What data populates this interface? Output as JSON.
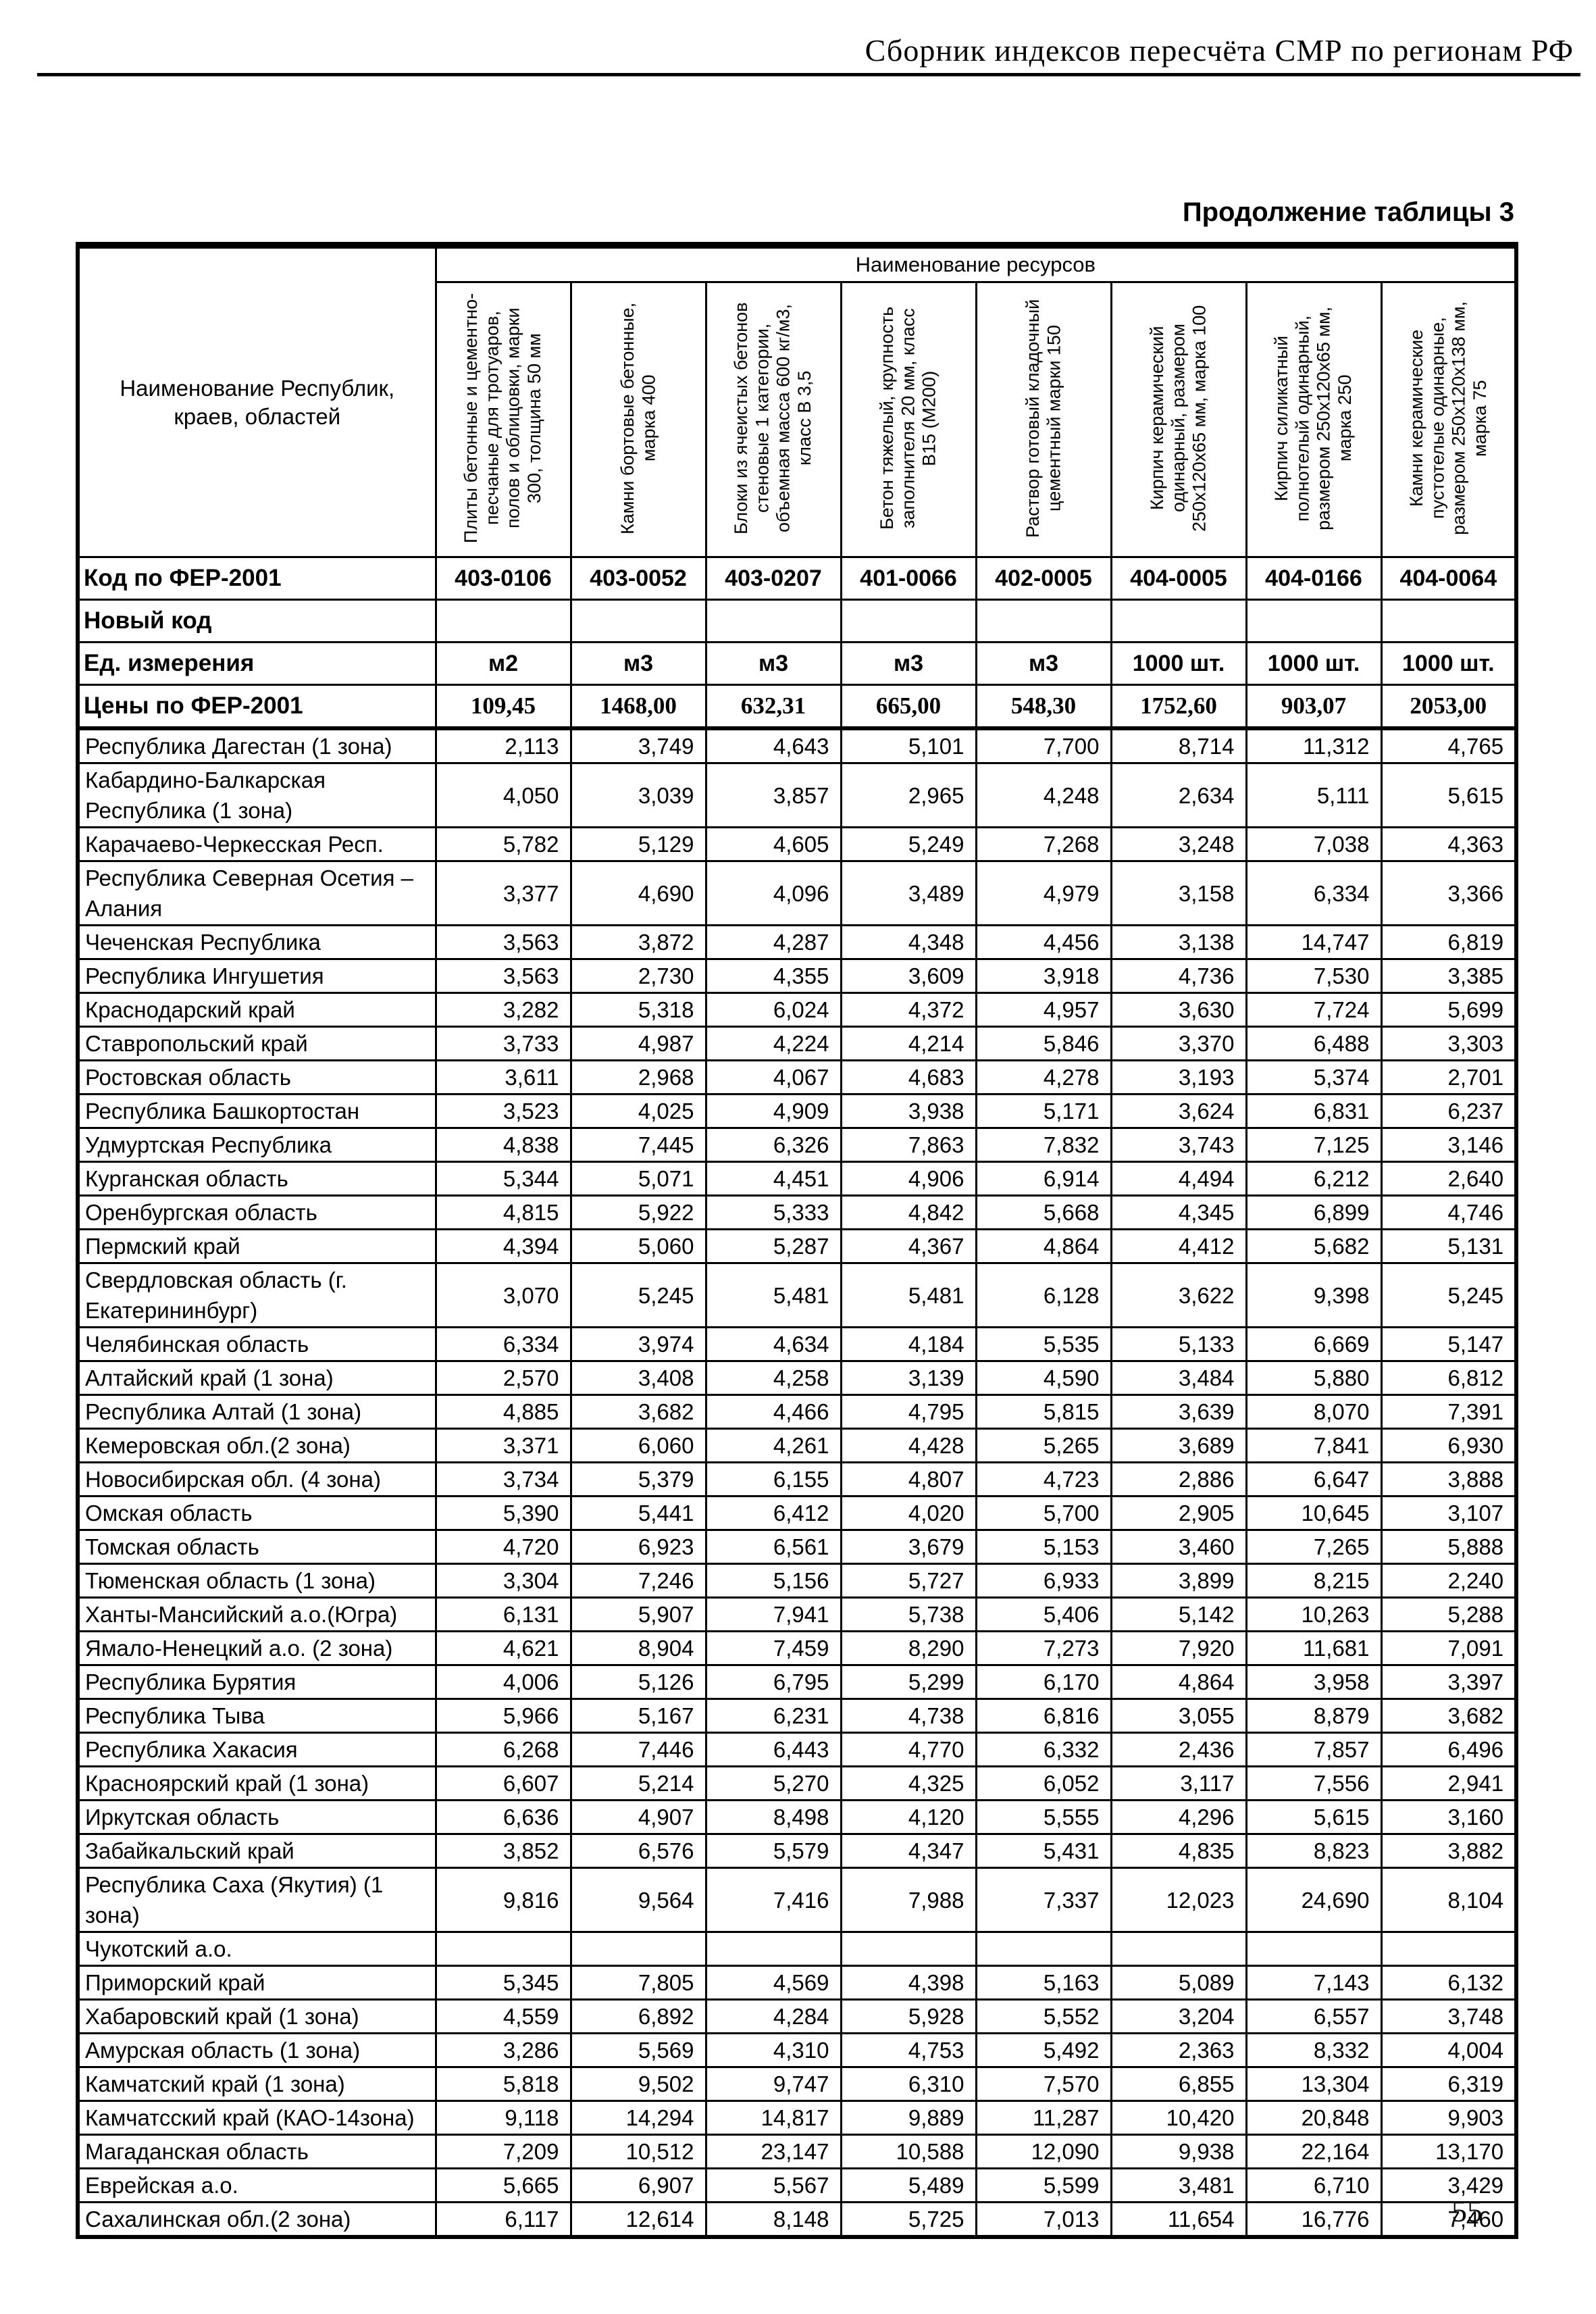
{
  "page": {
    "header_title": "Сборник индексов пересчёта СМР  по регионам РФ",
    "table_caption": "Продолжение таблицы 3",
    "page_number": "55"
  },
  "table": {
    "region_col_header": "Наименование Республик, краев, областей",
    "resources_header": "Наименование ресурсов",
    "columns": [
      "Плиты бетонные и цементно-песчаные для тротуаров, полов и облицовки, марки 300, толщина 50 мм",
      "Камни бортовые бетонные, марка 400",
      "Блоки из ячеистых бетонов стеновые 1 категории, объемная масса 600 кг/м3, класс В 3,5",
      "Бетон тяжелый, крупность заполнителя 20 мм, класс В15 (М200)",
      "Раствор готовый кладочный цементный марки 150",
      "Кирпич керамический одинарный, размером 250х120х65 мм, марка 100",
      "Кирпич силикатный полнотелый одинарный, размером 250х120х65 мм, марка 250",
      "Камни керамические пустотелые одинарные, размером 250х120х138 мм, марка 75"
    ],
    "meta_rows": [
      {
        "label": "Код по ФЕР-2001",
        "values": [
          "403-0106",
          "403-0052",
          "403-0207",
          "401-0066",
          "402-0005",
          "404-0005",
          "404-0166",
          "404-0064"
        ]
      },
      {
        "label": "Новый код",
        "values": [
          "",
          "",
          "",
          "",
          "",
          "",
          "",
          ""
        ]
      },
      {
        "label": "Ед. измерения",
        "values": [
          "м2",
          "м3",
          "м3",
          "м3",
          "м3",
          "1000 шт.",
          "1000 шт.",
          "1000 шт."
        ]
      },
      {
        "label": "Цены по ФЕР-2001",
        "values": [
          "109,45",
          "1468,00",
          "632,31",
          "665,00",
          "548,30",
          "1752,60",
          "903,07",
          "2053,00"
        ]
      }
    ],
    "rows": [
      {
        "name": "Республика Дагестан (1 зона)",
        "values": [
          "2,113",
          "3,749",
          "4,643",
          "5,101",
          "7,700",
          "8,714",
          "11,312",
          "4,765"
        ]
      },
      {
        "name": "Кабардино-Балкарская Республика (1 зона)",
        "values": [
          "4,050",
          "3,039",
          "3,857",
          "2,965",
          "4,248",
          "2,634",
          "5,111",
          "5,615"
        ]
      },
      {
        "name": "Карачаево-Черкесская Респ.",
        "values": [
          "5,782",
          "5,129",
          "4,605",
          "5,249",
          "7,268",
          "3,248",
          "7,038",
          "4,363"
        ]
      },
      {
        "name": "Республика Северная Осетия – Алания",
        "values": [
          "3,377",
          "4,690",
          "4,096",
          "3,489",
          "4,979",
          "3,158",
          "6,334",
          "3,366"
        ]
      },
      {
        "name": "Чеченская Республика",
        "values": [
          "3,563",
          "3,872",
          "4,287",
          "4,348",
          "4,456",
          "3,138",
          "14,747",
          "6,819"
        ]
      },
      {
        "name": "Республика Ингушетия",
        "values": [
          "3,563",
          "2,730",
          "4,355",
          "3,609",
          "3,918",
          "4,736",
          "7,530",
          "3,385"
        ]
      },
      {
        "name": "Краснодарский край",
        "values": [
          "3,282",
          "5,318",
          "6,024",
          "4,372",
          "4,957",
          "3,630",
          "7,724",
          "5,699"
        ]
      },
      {
        "name": "Ставропольский край",
        "values": [
          "3,733",
          "4,987",
          "4,224",
          "4,214",
          "5,846",
          "3,370",
          "6,488",
          "3,303"
        ]
      },
      {
        "name": "Ростовская область",
        "values": [
          "3,611",
          "2,968",
          "4,067",
          "4,683",
          "4,278",
          "3,193",
          "5,374",
          "2,701"
        ]
      },
      {
        "name": "Республика Башкортостан",
        "values": [
          "3,523",
          "4,025",
          "4,909",
          "3,938",
          "5,171",
          "3,624",
          "6,831",
          "6,237"
        ]
      },
      {
        "name": "Удмуртская Республика",
        "values": [
          "4,838",
          "7,445",
          "6,326",
          "7,863",
          "7,832",
          "3,743",
          "7,125",
          "3,146"
        ]
      },
      {
        "name": "Курганская область",
        "values": [
          "5,344",
          "5,071",
          "4,451",
          "4,906",
          "6,914",
          "4,494",
          "6,212",
          "2,640"
        ]
      },
      {
        "name": "Оренбургская область",
        "values": [
          "4,815",
          "5,922",
          "5,333",
          "4,842",
          "5,668",
          "4,345",
          "6,899",
          "4,746"
        ]
      },
      {
        "name": "Пермский край",
        "values": [
          "4,394",
          "5,060",
          "5,287",
          "4,367",
          "4,864",
          "4,412",
          "5,682",
          "5,131"
        ]
      },
      {
        "name": "Свердловская область (г. Екатерининбург)",
        "values": [
          "3,070",
          "5,245",
          "5,481",
          "5,481",
          "6,128",
          "3,622",
          "9,398",
          "5,245"
        ]
      },
      {
        "name": "Челябинская область",
        "values": [
          "6,334",
          "3,974",
          "4,634",
          "4,184",
          "5,535",
          "5,133",
          "6,669",
          "5,147"
        ]
      },
      {
        "name": "Алтайский край (1 зона)",
        "values": [
          "2,570",
          "3,408",
          "4,258",
          "3,139",
          "4,590",
          "3,484",
          "5,880",
          "6,812"
        ]
      },
      {
        "name": "Республика Алтай (1 зона)",
        "values": [
          "4,885",
          "3,682",
          "4,466",
          "4,795",
          "5,815",
          "3,639",
          "8,070",
          "7,391"
        ]
      },
      {
        "name": "Кемеровская обл.(2 зона)",
        "values": [
          "3,371",
          "6,060",
          "4,261",
          "4,428",
          "5,265",
          "3,689",
          "7,841",
          "6,930"
        ]
      },
      {
        "name": "Новосибирская обл. (4 зона)",
        "values": [
          "3,734",
          "5,379",
          "6,155",
          "4,807",
          "4,723",
          "2,886",
          "6,647",
          "3,888"
        ]
      },
      {
        "name": "Омская область",
        "values": [
          "5,390",
          "5,441",
          "6,412",
          "4,020",
          "5,700",
          "2,905",
          "10,645",
          "3,107"
        ]
      },
      {
        "name": "Томская область",
        "values": [
          "4,720",
          "6,923",
          "6,561",
          "3,679",
          "5,153",
          "3,460",
          "7,265",
          "5,888"
        ]
      },
      {
        "name": "Тюменская область (1 зона)",
        "values": [
          "3,304",
          "7,246",
          "5,156",
          "5,727",
          "6,933",
          "3,899",
          "8,215",
          "2,240"
        ]
      },
      {
        "name": "Ханты-Мансийский а.о.(Югра)",
        "values": [
          "6,131",
          "5,907",
          "7,941",
          "5,738",
          "5,406",
          "5,142",
          "10,263",
          "5,288"
        ]
      },
      {
        "name": "Ямало-Ненецкий а.о. (2 зона)",
        "values": [
          "4,621",
          "8,904",
          "7,459",
          "8,290",
          "7,273",
          "7,920",
          "11,681",
          "7,091"
        ]
      },
      {
        "name": "Республика Бурятия",
        "values": [
          "4,006",
          "5,126",
          "6,795",
          "5,299",
          "6,170",
          "4,864",
          "3,958",
          "3,397"
        ]
      },
      {
        "name": "Республика Тыва",
        "values": [
          "5,966",
          "5,167",
          "6,231",
          "4,738",
          "6,816",
          "3,055",
          "8,879",
          "3,682"
        ]
      },
      {
        "name": "Республика Хакасия",
        "values": [
          "6,268",
          "7,446",
          "6,443",
          "4,770",
          "6,332",
          "2,436",
          "7,857",
          "6,496"
        ]
      },
      {
        "name": "Красноярский край (1 зона)",
        "values": [
          "6,607",
          "5,214",
          "5,270",
          "4,325",
          "6,052",
          "3,117",
          "7,556",
          "2,941"
        ]
      },
      {
        "name": "Иркутская область",
        "values": [
          "6,636",
          "4,907",
          "8,498",
          "4,120",
          "5,555",
          "4,296",
          "5,615",
          "3,160"
        ]
      },
      {
        "name": "Забайкальский край",
        "values": [
          "3,852",
          "6,576",
          "5,579",
          "4,347",
          "5,431",
          "4,835",
          "8,823",
          "3,882"
        ]
      },
      {
        "name": "Республика Саха (Якутия) (1 зона)",
        "values": [
          "9,816",
          "9,564",
          "7,416",
          "7,988",
          "7,337",
          "12,023",
          "24,690",
          "8,104"
        ]
      },
      {
        "name": "Чукотский а.о.",
        "values": [
          "",
          "",
          "",
          "",
          "",
          "",
          "",
          ""
        ]
      },
      {
        "name": "Приморский край",
        "values": [
          "5,345",
          "7,805",
          "4,569",
          "4,398",
          "5,163",
          "5,089",
          "7,143",
          "6,132"
        ]
      },
      {
        "name": "Хабаровский край (1 зона)",
        "values": [
          "4,559",
          "6,892",
          "4,284",
          "5,928",
          "5,552",
          "3,204",
          "6,557",
          "3,748"
        ]
      },
      {
        "name": "Амурская область (1 зона)",
        "values": [
          "3,286",
          "5,569",
          "4,310",
          "4,753",
          "5,492",
          "2,363",
          "8,332",
          "4,004"
        ]
      },
      {
        "name": "Камчатский край (1 зона)",
        "values": [
          "5,818",
          "9,502",
          "9,747",
          "6,310",
          "7,570",
          "6,855",
          "13,304",
          "6,319"
        ]
      },
      {
        "name": "Камчатсский край (КАО-14зона)",
        "values": [
          "9,118",
          "14,294",
          "14,817",
          "9,889",
          "11,287",
          "10,420",
          "20,848",
          "9,903"
        ]
      },
      {
        "name": "Магаданская область",
        "values": [
          "7,209",
          "10,512",
          "23,147",
          "10,588",
          "12,090",
          "9,938",
          "22,164",
          "13,170"
        ]
      },
      {
        "name": "Еврейская а.о.",
        "values": [
          "5,665",
          "6,907",
          "5,567",
          "5,489",
          "5,599",
          "3,481",
          "6,710",
          "3,429"
        ]
      },
      {
        "name": "Сахалинская обл.(2 зона)",
        "values": [
          "6,117",
          "12,614",
          "8,148",
          "5,725",
          "7,013",
          "11,654",
          "16,776",
          "7,460"
        ]
      }
    ]
  }
}
